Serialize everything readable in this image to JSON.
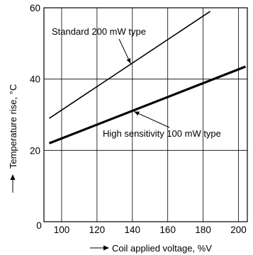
{
  "chart_data": {
    "type": "line",
    "xlabel": "Coil applied voltage, %V",
    "ylabel": "Temperature rise, °C",
    "xlim": [
      90,
      205
    ],
    "ylim": [
      0,
      60
    ],
    "x_ticks": [
      100,
      120,
      140,
      160,
      180,
      200
    ],
    "y_ticks": [
      0,
      20,
      40,
      60
    ],
    "origin_label": "0",
    "grid": true,
    "series": [
      {
        "name": "Standard 200 mW type",
        "x": [
          93,
          184
        ],
        "y": [
          29,
          59
        ],
        "weight": "thin"
      },
      {
        "name": "High sensitivity 100 mW type",
        "x": [
          93,
          204
        ],
        "y": [
          22,
          43.5
        ],
        "weight": "bold"
      }
    ]
  }
}
